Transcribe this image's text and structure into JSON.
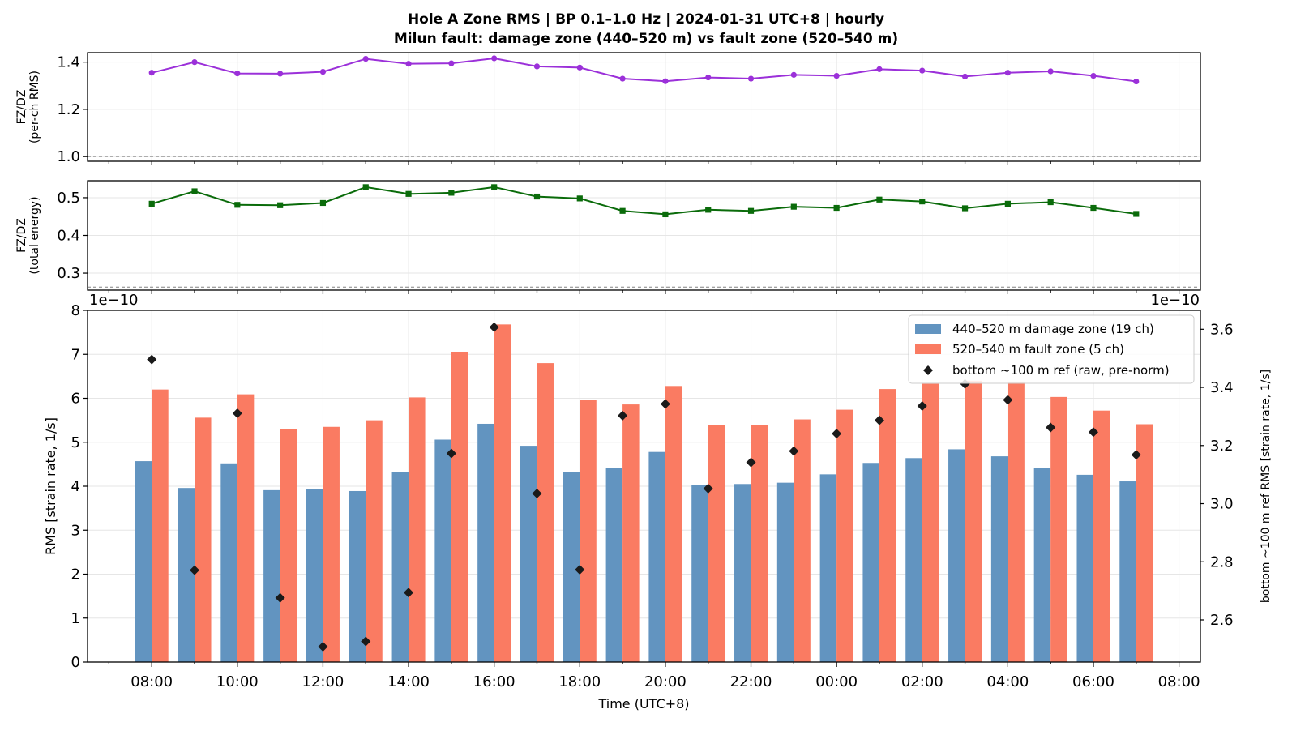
{
  "title": {
    "line1": "Hole A Zone RMS  |  BP 0.1–1.0 Hz  |  2024-01-31 UTC+8  |  hourly",
    "line2": "Milun fault: damage zone (440–520 m) vs fault zone (520–540 m)"
  },
  "chart_data": [
    {
      "type": "line",
      "ylabel_line1": "FZ/DZ",
      "ylabel_line2": "(per-ch RMS)",
      "color": "#9b30d9",
      "marker": "circle",
      "ylim": [
        0.98,
        1.44
      ],
      "yticks": [
        "1.0",
        "1.2",
        "1.4"
      ],
      "reference_line": 1.0,
      "x": [
        "08:00",
        "09:00",
        "10:00",
        "11:00",
        "12:00",
        "13:00",
        "14:00",
        "15:00",
        "16:00",
        "17:00",
        "18:00",
        "19:00",
        "20:00",
        "21:00",
        "22:00",
        "23:00",
        "00:00",
        "01:00",
        "02:00",
        "03:00",
        "04:00",
        "05:00",
        "06:00",
        "07:00"
      ],
      "values": [
        1.355,
        1.4,
        1.352,
        1.351,
        1.359,
        1.414,
        1.393,
        1.395,
        1.416,
        1.382,
        1.377,
        1.33,
        1.319,
        1.335,
        1.33,
        1.346,
        1.342,
        1.37,
        1.364,
        1.339,
        1.355,
        1.361,
        1.342,
        1.318
      ]
    },
    {
      "type": "line",
      "ylabel_line1": "FZ/DZ",
      "ylabel_line2": "(total energy)",
      "color": "#0a6b0a",
      "marker": "square",
      "ylim": [
        0.255,
        0.545
      ],
      "yticks": [
        "0.3",
        "0.4",
        "0.5"
      ],
      "reference_line": 0.263,
      "x": [
        "08:00",
        "09:00",
        "10:00",
        "11:00",
        "12:00",
        "13:00",
        "14:00",
        "15:00",
        "16:00",
        "17:00",
        "18:00",
        "19:00",
        "20:00",
        "21:00",
        "22:00",
        "23:00",
        "00:00",
        "01:00",
        "02:00",
        "03:00",
        "04:00",
        "05:00",
        "06:00",
        "07:00"
      ],
      "values": [
        0.484,
        0.517,
        0.481,
        0.48,
        0.486,
        0.528,
        0.51,
        0.513,
        0.528,
        0.503,
        0.498,
        0.465,
        0.456,
        0.468,
        0.465,
        0.476,
        0.473,
        0.495,
        0.49,
        0.472,
        0.484,
        0.488,
        0.473,
        0.457
      ]
    },
    {
      "type": "bar",
      "xlabel": "Time (UTC+8)",
      "ylabel": "RMS  [strain rate, 1/s]",
      "y2label": "bottom ~100 m ref RMS  [strain rate, 1/s]",
      "offset_left": "1e−10",
      "offset_right": "1e−10",
      "ylim": [
        0,
        8
      ],
      "yticks": [
        "0",
        "1",
        "2",
        "3",
        "4",
        "5",
        "6",
        "7",
        "8"
      ],
      "y2lim": [
        2.455,
        3.665
      ],
      "y2ticks": [
        "2.6",
        "2.8",
        "3.0",
        "3.2",
        "3.4",
        "3.6"
      ],
      "xticks": [
        "08:00",
        "10:00",
        "12:00",
        "14:00",
        "16:00",
        "18:00",
        "20:00",
        "22:00",
        "00:00",
        "02:00",
        "04:00",
        "06:00",
        "08:00"
      ],
      "legend_position": "top-right",
      "categories": [
        "08:00",
        "09:00",
        "10:00",
        "11:00",
        "12:00",
        "13:00",
        "14:00",
        "15:00",
        "16:00",
        "17:00",
        "18:00",
        "19:00",
        "20:00",
        "21:00",
        "22:00",
        "23:00",
        "00:00",
        "01:00",
        "02:00",
        "03:00",
        "04:00",
        "05:00",
        "06:00",
        "07:00"
      ],
      "series": [
        {
          "name": "440–520 m  damage zone (19 ch)",
          "color": "#6294c0",
          "values": [
            4.57,
            3.96,
            4.52,
            3.91,
            3.93,
            3.89,
            4.33,
            5.06,
            5.42,
            4.92,
            4.33,
            4.41,
            4.78,
            4.03,
            4.05,
            4.08,
            4.27,
            4.53,
            4.64,
            4.84,
            4.68,
            4.42,
            4.26,
            4.11
          ]
        },
        {
          "name": "520–540 m  fault zone (5 ch)",
          "color": "#fa7b62",
          "values": [
            6.2,
            5.56,
            6.09,
            5.3,
            5.35,
            5.5,
            6.02,
            7.06,
            7.68,
            6.8,
            5.96,
            5.86,
            6.28,
            5.39,
            5.39,
            5.52,
            5.74,
            6.21,
            6.33,
            6.4,
            6.38,
            6.03,
            5.72,
            5.41
          ]
        },
        {
          "name": "bottom ~100 m ref (raw, pre-norm)",
          "color": "#1a1a1a",
          "marker": "diamond",
          "axis": "right",
          "values": [
            3.496,
            2.771,
            3.311,
            2.676,
            2.508,
            2.526,
            2.694,
            3.173,
            3.607,
            3.035,
            2.773,
            3.303,
            3.343,
            3.052,
            3.142,
            3.181,
            3.241,
            3.287,
            3.336,
            3.412,
            3.357,
            3.262,
            3.246,
            3.168
          ]
        }
      ]
    }
  ]
}
